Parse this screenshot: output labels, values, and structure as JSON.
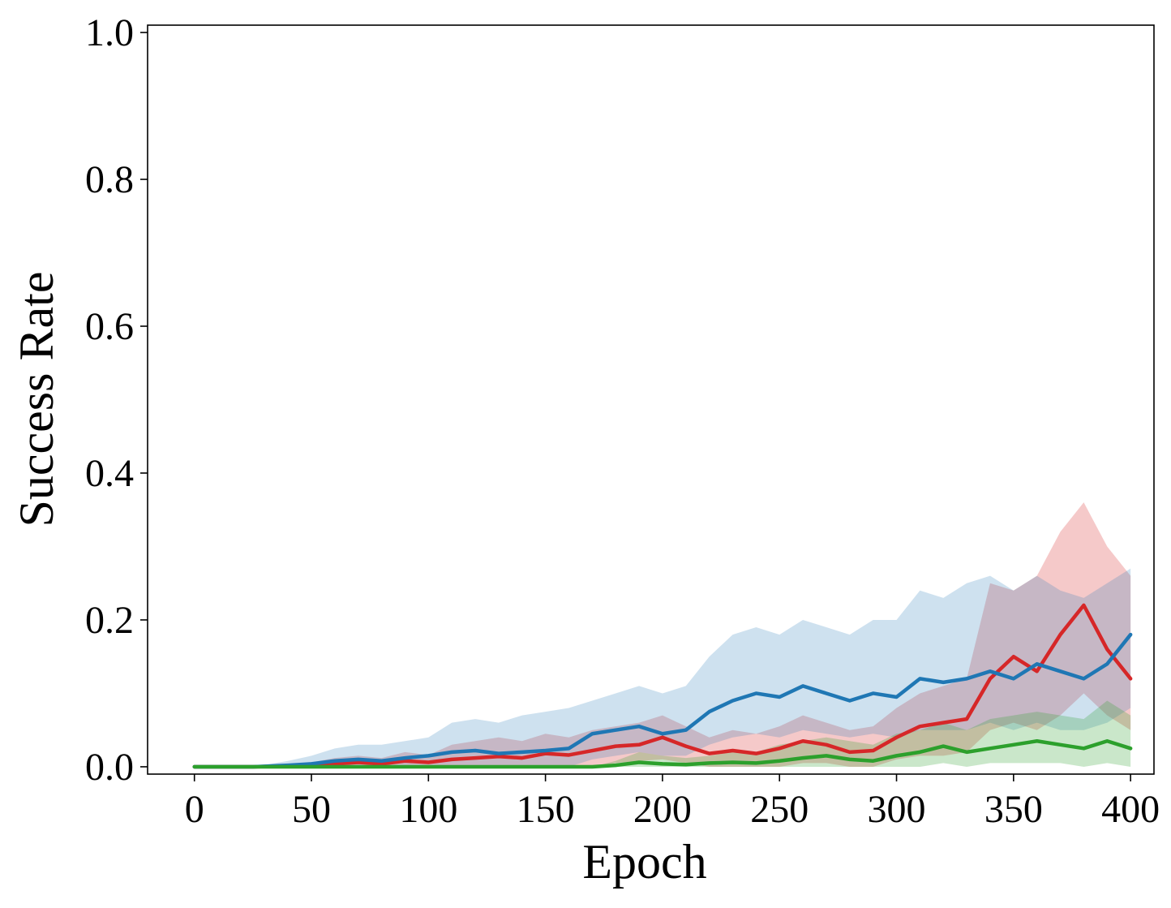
{
  "chart_data": {
    "type": "line",
    "title": "",
    "xlabel": "Epoch",
    "ylabel": "Success Rate",
    "xlim": [
      -20,
      410
    ],
    "ylim": [
      -0.01,
      1.01
    ],
    "xticks": [
      0,
      50,
      100,
      150,
      200,
      250,
      300,
      350,
      400
    ],
    "yticks": [
      0.0,
      0.2,
      0.4,
      0.6,
      0.8,
      1.0
    ],
    "xtick_labels": [
      "0",
      "50",
      "100",
      "150",
      "200",
      "250",
      "300",
      "350",
      "400"
    ],
    "ytick_labels": [
      "0.0",
      "0.2",
      "0.4",
      "0.6",
      "0.8",
      "1.0"
    ],
    "grid": false,
    "legend": "none",
    "series": [
      {
        "color": "#d62728",
        "band_opacity": 0.25,
        "x": [
          0,
          25,
          50,
          60,
          70,
          80,
          90,
          100,
          110,
          120,
          130,
          140,
          150,
          160,
          170,
          180,
          190,
          200,
          210,
          220,
          230,
          240,
          250,
          260,
          270,
          280,
          290,
          300,
          310,
          320,
          330,
          340,
          350,
          360,
          370,
          380,
          390,
          400
        ],
        "y": [
          0.0,
          0.0,
          0.002,
          0.004,
          0.006,
          0.004,
          0.008,
          0.006,
          0.01,
          0.012,
          0.014,
          0.012,
          0.018,
          0.016,
          0.022,
          0.028,
          0.03,
          0.04,
          0.028,
          0.018,
          0.022,
          0.018,
          0.025,
          0.035,
          0.03,
          0.02,
          0.022,
          0.04,
          0.055,
          0.06,
          0.065,
          0.12,
          0.15,
          0.13,
          0.18,
          0.22,
          0.16,
          0.12
        ],
        "y_lower": [
          0.0,
          0.0,
          0.0,
          0.0,
          0.0,
          0.0,
          0.0,
          0.0,
          0.0,
          0.0,
          0.0,
          0.0,
          0.0,
          0.0,
          0.0,
          0.005,
          0.008,
          0.01,
          0.005,
          0.0,
          0.0,
          0.0,
          0.0,
          0.005,
          0.005,
          0.0,
          0.0,
          0.01,
          0.015,
          0.015,
          0.02,
          0.05,
          0.06,
          0.05,
          0.07,
          0.1,
          0.07,
          0.05
        ],
        "y_upper": [
          0.0,
          0.0,
          0.006,
          0.012,
          0.015,
          0.012,
          0.02,
          0.016,
          0.03,
          0.035,
          0.04,
          0.035,
          0.045,
          0.04,
          0.05,
          0.055,
          0.06,
          0.07,
          0.055,
          0.04,
          0.05,
          0.045,
          0.055,
          0.07,
          0.06,
          0.05,
          0.055,
          0.08,
          0.1,
          0.11,
          0.12,
          0.25,
          0.24,
          0.26,
          0.32,
          0.36,
          0.3,
          0.26
        ]
      },
      {
        "color": "#1f77b4",
        "band_opacity": 0.22,
        "x": [
          0,
          25,
          40,
          50,
          60,
          70,
          80,
          90,
          100,
          110,
          120,
          130,
          140,
          150,
          160,
          170,
          180,
          190,
          200,
          210,
          220,
          230,
          240,
          250,
          260,
          270,
          280,
          290,
          300,
          310,
          320,
          330,
          340,
          350,
          360,
          370,
          380,
          390,
          400
        ],
        "y": [
          0.0,
          0.0,
          0.002,
          0.004,
          0.008,
          0.01,
          0.008,
          0.012,
          0.015,
          0.02,
          0.022,
          0.018,
          0.02,
          0.022,
          0.025,
          0.045,
          0.05,
          0.055,
          0.045,
          0.05,
          0.075,
          0.09,
          0.1,
          0.095,
          0.11,
          0.1,
          0.09,
          0.1,
          0.095,
          0.12,
          0.115,
          0.12,
          0.13,
          0.12,
          0.14,
          0.13,
          0.12,
          0.14,
          0.18
        ],
        "y_lower": [
          0.0,
          0.0,
          0.0,
          0.0,
          0.0,
          0.0,
          0.0,
          0.0,
          0.0,
          0.0,
          0.0,
          0.0,
          0.0,
          0.0,
          0.0,
          0.01,
          0.015,
          0.02,
          0.015,
          0.015,
          0.03,
          0.04,
          0.045,
          0.04,
          0.05,
          0.045,
          0.04,
          0.045,
          0.04,
          0.05,
          0.05,
          0.05,
          0.06,
          0.05,
          0.06,
          0.05,
          0.05,
          0.06,
          0.08
        ],
        "y_upper": [
          0.0,
          0.0,
          0.008,
          0.015,
          0.025,
          0.03,
          0.03,
          0.035,
          0.04,
          0.06,
          0.065,
          0.06,
          0.07,
          0.075,
          0.08,
          0.09,
          0.1,
          0.11,
          0.1,
          0.11,
          0.15,
          0.18,
          0.19,
          0.18,
          0.2,
          0.19,
          0.18,
          0.2,
          0.2,
          0.24,
          0.23,
          0.25,
          0.26,
          0.24,
          0.26,
          0.24,
          0.23,
          0.25,
          0.27
        ]
      },
      {
        "color": "#2ca02c",
        "band_opacity": 0.25,
        "x": [
          0,
          25,
          50,
          100,
          150,
          170,
          180,
          190,
          200,
          210,
          220,
          230,
          240,
          250,
          260,
          270,
          280,
          290,
          300,
          310,
          320,
          330,
          340,
          350,
          360,
          370,
          380,
          390,
          400
        ],
        "y": [
          0.0,
          0.0,
          0.0,
          0.0,
          0.0,
          0.0,
          0.002,
          0.006,
          0.004,
          0.003,
          0.005,
          0.006,
          0.005,
          0.008,
          0.012,
          0.015,
          0.01,
          0.008,
          0.015,
          0.02,
          0.028,
          0.02,
          0.025,
          0.03,
          0.035,
          0.03,
          0.025,
          0.035,
          0.025
        ],
        "y_lower": [
          0.0,
          0.0,
          0.0,
          0.0,
          0.0,
          0.0,
          0.0,
          0.0,
          0.0,
          0.0,
          0.0,
          0.0,
          0.0,
          0.0,
          0.0,
          0.0,
          0.0,
          0.0,
          0.0,
          0.0,
          0.005,
          0.0,
          0.005,
          0.005,
          0.005,
          0.005,
          0.0,
          0.005,
          0.0
        ],
        "y_upper": [
          0.0,
          0.0,
          0.0,
          0.0,
          0.0,
          0.0,
          0.008,
          0.02,
          0.015,
          0.012,
          0.015,
          0.02,
          0.02,
          0.03,
          0.035,
          0.04,
          0.035,
          0.03,
          0.045,
          0.05,
          0.06,
          0.05,
          0.065,
          0.07,
          0.075,
          0.07,
          0.065,
          0.09,
          0.07
        ]
      }
    ]
  }
}
